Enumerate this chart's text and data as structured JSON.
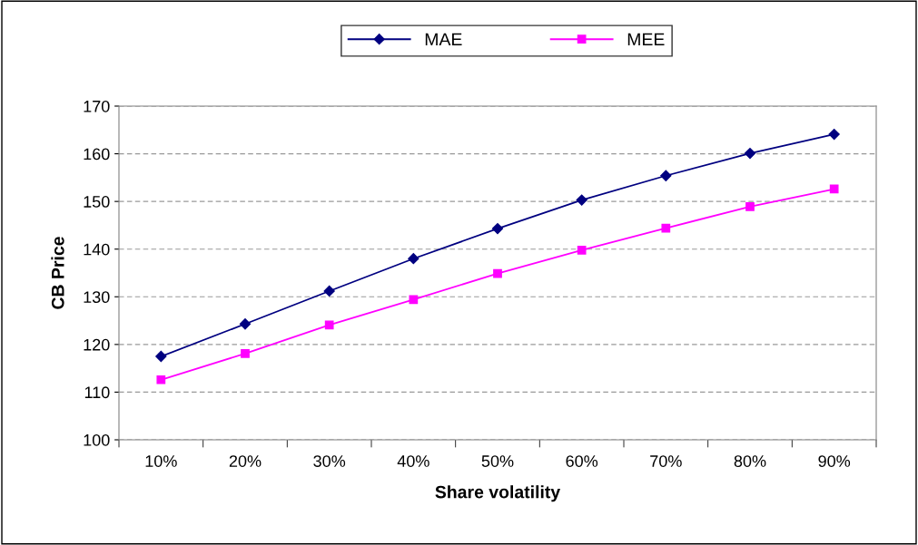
{
  "chart_data": {
    "type": "line",
    "xlabel": "Share volatility",
    "ylabel": "CB Price",
    "categories": [
      "10%",
      "20%",
      "30%",
      "40%",
      "50%",
      "60%",
      "70%",
      "80%",
      "90%"
    ],
    "series": [
      {
        "name": "MAE",
        "color": "#000080",
        "marker": "diamond",
        "values": [
          117.5,
          124.3,
          131.2,
          138.0,
          144.3,
          150.3,
          155.4,
          160.1,
          164.1
        ]
      },
      {
        "name": "MEE",
        "color": "#ff00ff",
        "marker": "square",
        "values": [
          112.6,
          118.1,
          124.1,
          129.4,
          134.9,
          139.8,
          144.4,
          148.9,
          152.6
        ]
      }
    ],
    "ylim": [
      100,
      170
    ],
    "yticks": [
      100,
      110,
      120,
      130,
      140,
      150,
      160,
      170
    ],
    "grid": "y",
    "legend": "top",
    "line_style": "solid"
  }
}
